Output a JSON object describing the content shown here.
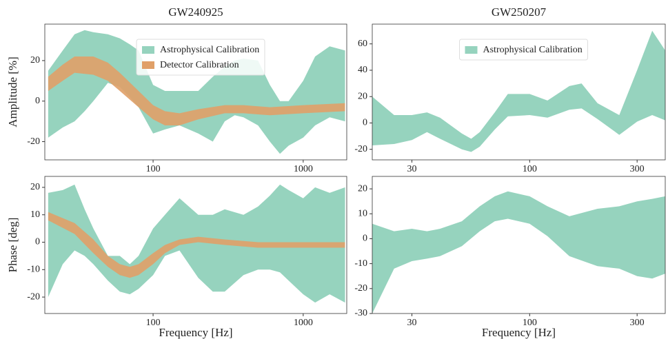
{
  "chart_data": [
    {
      "type": "band",
      "title": "GW240925",
      "ylabel": "Amplitude [%]",
      "xscale": "log",
      "legend": "upper center",
      "xlim": [
        19,
        1950
      ],
      "ylim": [
        -29,
        38
      ],
      "xticks": [
        100,
        1000
      ],
      "yticks": [
        -20,
        0,
        20
      ],
      "series": [
        {
          "name": "Astrophysical Calibration",
          "color": "#96d3be",
          "x": [
            20,
            25,
            30,
            35,
            40,
            50,
            60,
            70,
            80,
            100,
            120,
            150,
            200,
            250,
            300,
            350,
            400,
            500,
            600,
            700,
            800,
            1000,
            1200,
            1500,
            1900
          ],
          "lower": [
            -18,
            -13,
            -10,
            -5,
            0,
            9,
            7,
            2,
            -3,
            -16,
            -14,
            -12,
            -16,
            -20,
            -10,
            -7,
            -8,
            -12,
            -20,
            -26,
            -22,
            -18,
            -12,
            -8,
            -10
          ],
          "upper": [
            15,
            25,
            33,
            35,
            34,
            33,
            31,
            28,
            25,
            8,
            5,
            5,
            5,
            12,
            17,
            20,
            21,
            20,
            8,
            0,
            0,
            10,
            22,
            27,
            25
          ]
        },
        {
          "name": "Detector Calibration",
          "color": "#e0a068",
          "x": [
            20,
            25,
            30,
            40,
            50,
            60,
            80,
            100,
            120,
            150,
            200,
            300,
            400,
            600,
            1000,
            1900
          ],
          "lower": [
            5,
            10,
            14,
            13,
            10,
            5,
            -3,
            -9,
            -12,
            -12,
            -9,
            -6,
            -6,
            -7,
            -6,
            -5
          ],
          "upper": [
            12,
            18,
            22,
            22,
            19,
            14,
            5,
            -2,
            -5,
            -6,
            -4,
            -2,
            -2,
            -3,
            -2,
            -1
          ]
        }
      ]
    },
    {
      "type": "band",
      "title": "GW250207",
      "xscale": "log",
      "legend": "upper center",
      "xlim": [
        20,
        400
      ],
      "ylim": [
        -28,
        75
      ],
      "xticks": [
        30,
        100,
        300
      ],
      "yticks": [
        -20,
        0,
        20,
        40,
        60
      ],
      "series": [
        {
          "name": "Astrophysical Calibration",
          "color": "#96d3be",
          "x": [
            20,
            25,
            30,
            35,
            40,
            50,
            55,
            60,
            70,
            80,
            100,
            120,
            150,
            170,
            200,
            250,
            300,
            350,
            400
          ],
          "lower": [
            -17,
            -16,
            -13,
            -7,
            -12,
            -20,
            -22,
            -18,
            -5,
            5,
            6,
            4,
            10,
            11,
            3,
            -9,
            1,
            6,
            2
          ],
          "upper": [
            20,
            6,
            6,
            8,
            4,
            -8,
            -12,
            -7,
            8,
            22,
            22,
            17,
            28,
            30,
            15,
            6,
            40,
            70,
            55
          ]
        }
      ]
    },
    {
      "type": "band",
      "ylabel": "Phase [deg]",
      "xlabel": "Frequency [Hz]",
      "xscale": "log",
      "xlim": [
        19,
        1950
      ],
      "ylim": [
        -26,
        24
      ],
      "xticks": [
        100,
        1000
      ],
      "yticks": [
        -20,
        -10,
        0,
        10,
        20
      ],
      "series": [
        {
          "name": "Astrophysical Calibration",
          "color": "#96d3be",
          "x": [
            20,
            25,
            30,
            35,
            40,
            50,
            60,
            70,
            80,
            100,
            120,
            150,
            200,
            250,
            300,
            400,
            500,
            600,
            700,
            800,
            1000,
            1200,
            1500,
            1900
          ],
          "lower": [
            -20,
            -8,
            -3,
            -5,
            -8,
            -14,
            -18,
            -19,
            -17,
            -12,
            -5,
            -3,
            -13,
            -18,
            -18,
            -12,
            -10,
            -10,
            -11,
            -14,
            -19,
            -22,
            -19,
            -22
          ],
          "upper": [
            18,
            19,
            21,
            12,
            5,
            -5,
            -5,
            -8,
            -5,
            5,
            10,
            16,
            10,
            10,
            12,
            10,
            13,
            17,
            21,
            19,
            16,
            20,
            18,
            20
          ]
        },
        {
          "name": "Detector Calibration",
          "color": "#e0a068",
          "x": [
            20,
            30,
            40,
            50,
            60,
            70,
            80,
            100,
            120,
            150,
            200,
            300,
            500,
            1000,
            1900
          ],
          "lower": [
            8,
            3,
            -4,
            -9,
            -12,
            -13,
            -12,
            -8,
            -4,
            -1,
            0,
            -1,
            -2,
            -2,
            -2
          ],
          "upper": [
            11,
            7,
            1,
            -5,
            -8,
            -9,
            -8,
            -4,
            -1,
            1,
            2,
            1,
            0,
            0,
            0
          ]
        }
      ]
    },
    {
      "type": "band",
      "xlabel": "Frequency [Hz]",
      "xscale": "log",
      "xlim": [
        20,
        400
      ],
      "ylim": [
        -30,
        25
      ],
      "xticks": [
        30,
        100,
        300
      ],
      "yticks": [
        -30,
        -20,
        -10,
        0,
        10,
        20
      ],
      "series": [
        {
          "name": "Astrophysical Calibration",
          "color": "#96d3be",
          "x": [
            20,
            25,
            30,
            35,
            40,
            50,
            60,
            70,
            80,
            100,
            120,
            150,
            200,
            250,
            300,
            350,
            400
          ],
          "lower": [
            -30,
            -12,
            -9,
            -8,
            -7,
            -3,
            3,
            7,
            8,
            6,
            1,
            -7,
            -11,
            -12,
            -15,
            -16,
            -14
          ],
          "upper": [
            6,
            3,
            4,
            3,
            4,
            7,
            13,
            17,
            19,
            17,
            13,
            9,
            12,
            13,
            15,
            16,
            17
          ]
        }
      ]
    }
  ]
}
